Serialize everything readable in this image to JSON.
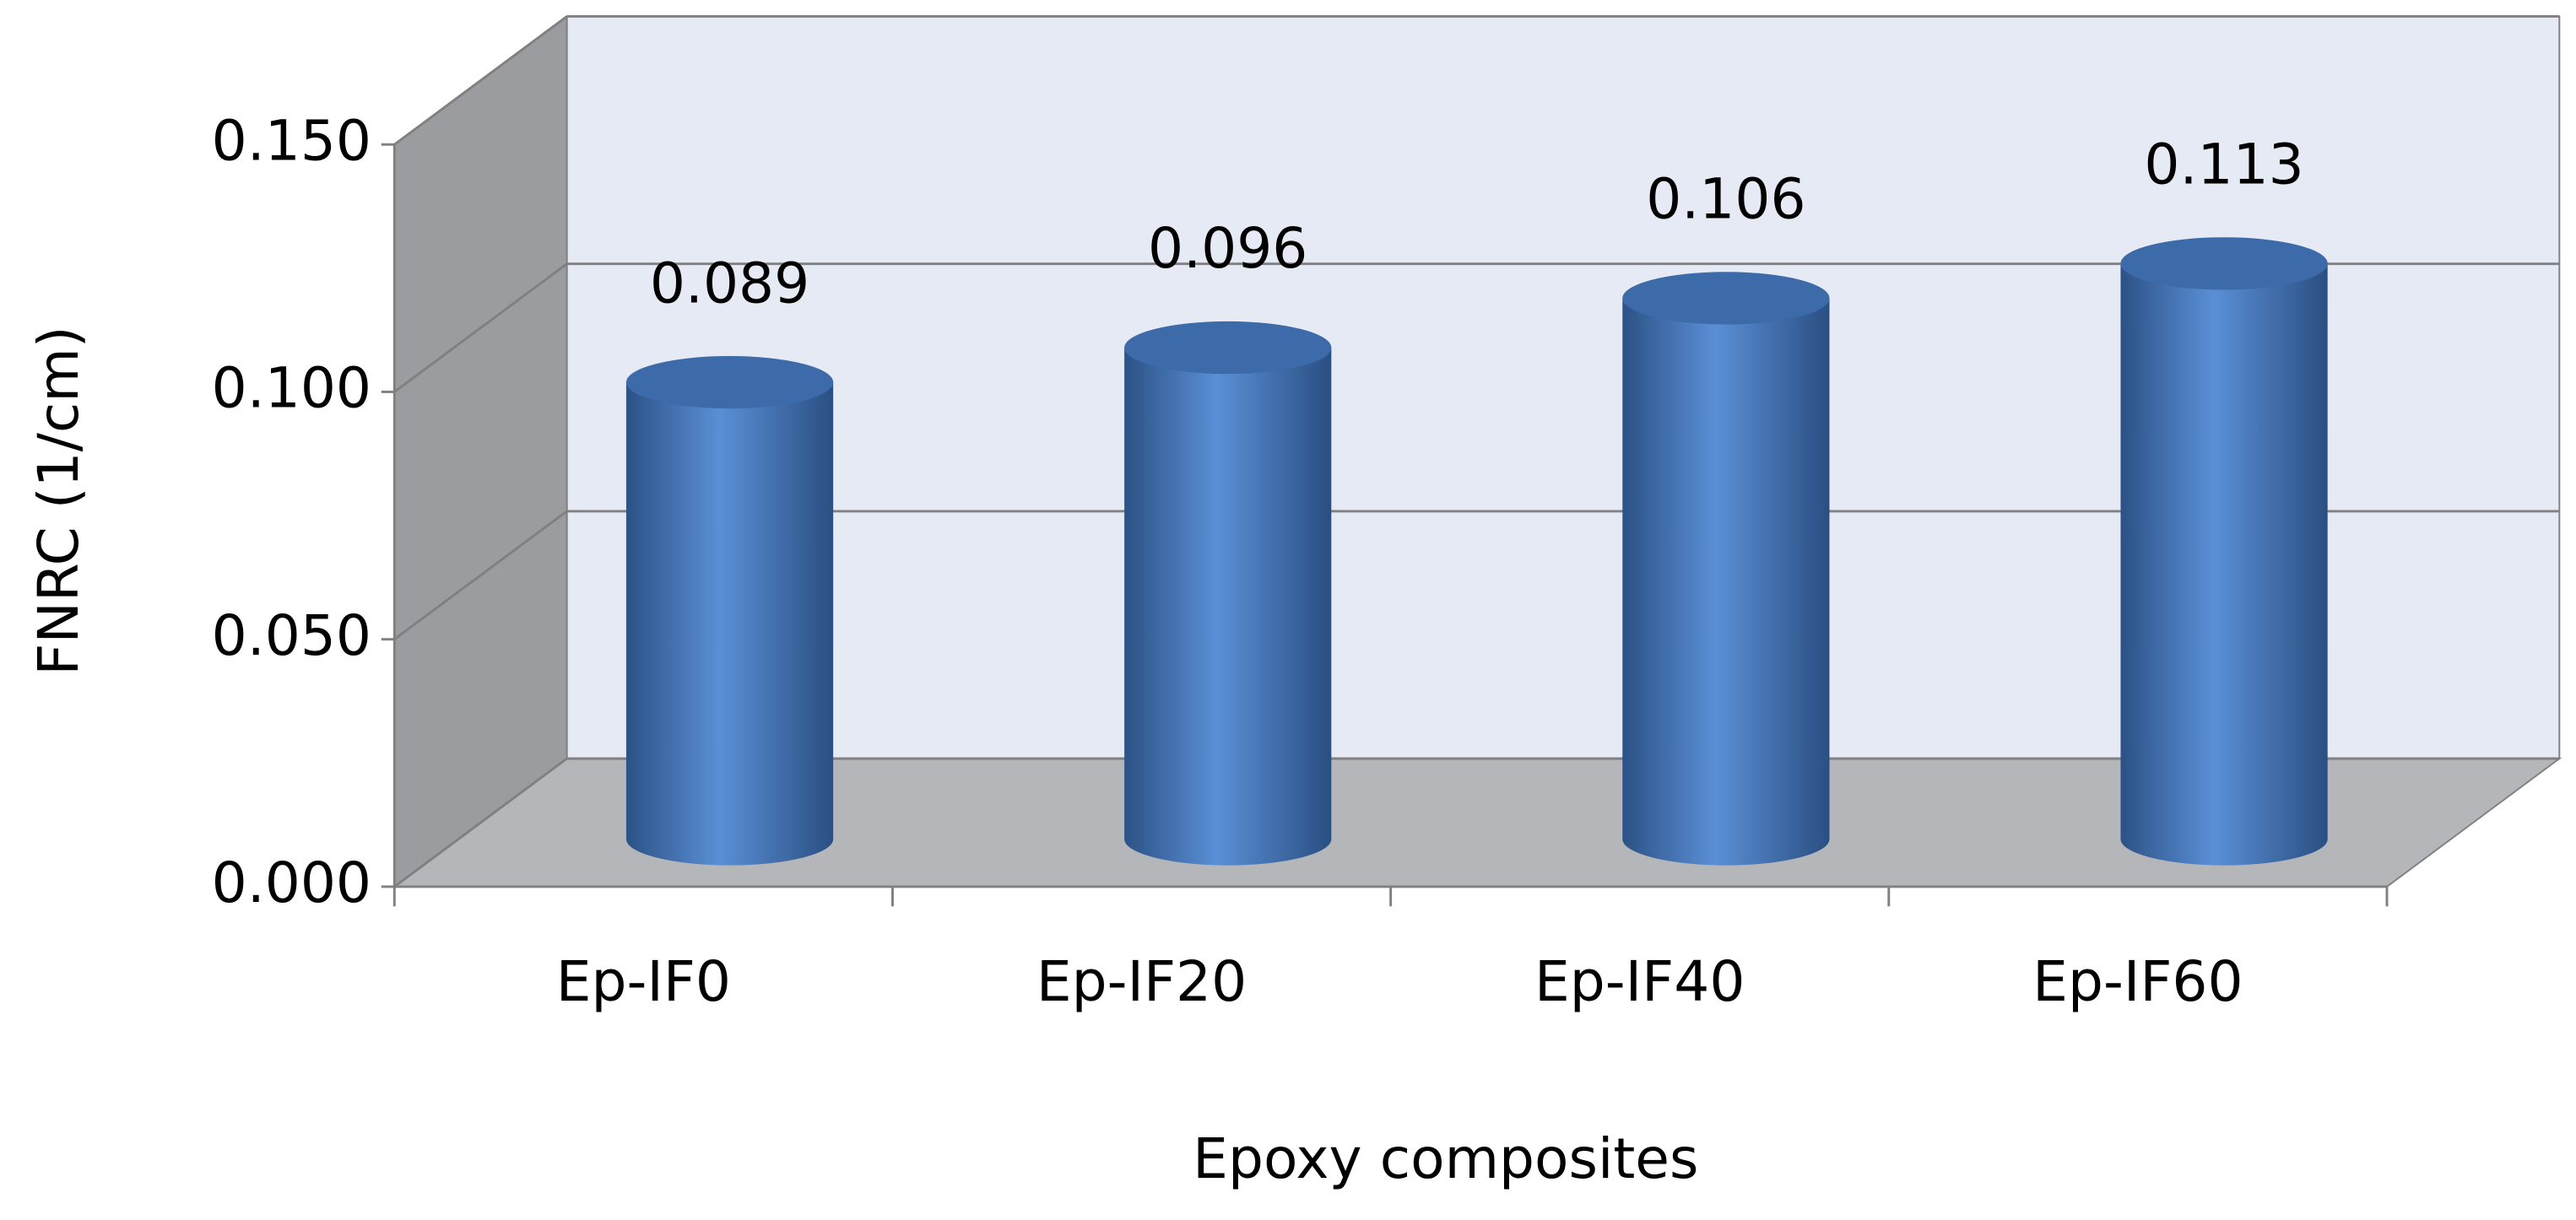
{
  "chart_data": {
    "type": "bar3d",
    "x_label": "Epoxy composites",
    "y_label": "FNRC (1/cm)",
    "categories": [
      "Ep-IF0",
      "Ep-IF20",
      "Ep-IF40",
      "Ep-IF60"
    ],
    "values": [
      0.089,
      0.096,
      0.106,
      0.113
    ],
    "color": "#4f81bd",
    "ylim": [
      0,
      0.15
    ],
    "yticks": [
      {
        "value": 0,
        "label": "0.000"
      },
      {
        "value": 0.05,
        "label": "0.050"
      },
      {
        "value": 0.1,
        "label": "0.100"
      },
      {
        "value": 0.15,
        "label": "0.150"
      }
    ],
    "grid": true
  }
}
